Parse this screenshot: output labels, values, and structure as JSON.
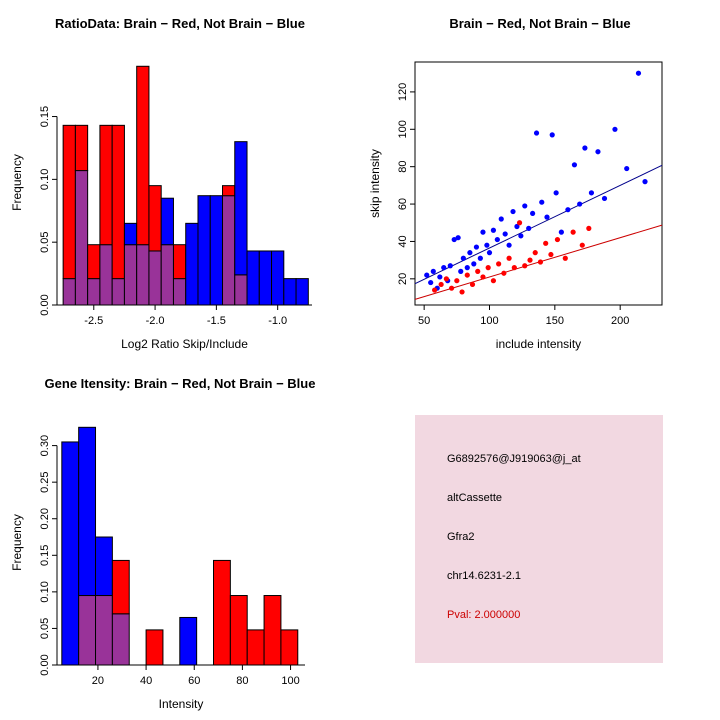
{
  "chart_data": [
    {
      "id": "ratio_hist",
      "type": "bar",
      "title": "RatioData: Brain − Red, Not Brain − Blue",
      "xlabel": "Log2 Ratio Skip/Include",
      "ylabel": "Frequency",
      "bin_start": -2.75,
      "bin_width": 0.1,
      "xlim": [
        -2.8,
        -0.72
      ],
      "ylim": [
        0,
        0.195
      ],
      "xticks": [
        -2.5,
        -2.0,
        -1.5,
        -1.0
      ],
      "yticks": [
        0,
        0.05,
        0.1,
        0.15
      ],
      "xtick_decimals": 1,
      "ytick_decimals": 2,
      "grid": false,
      "overlap_color": "#993399",
      "series": [
        {
          "name": "Brain",
          "color": "#FF0000",
          "values": [
            0.143,
            0.143,
            0.048,
            0.143,
            0.143,
            0.048,
            0.19,
            0.095,
            0.048,
            0.048,
            0,
            0,
            0,
            0.095,
            0.024,
            0,
            0,
            0,
            0,
            0
          ]
        },
        {
          "name": "Not Brain",
          "color": "#0000FF",
          "values": [
            0.021,
            0.107,
            0.021,
            0.048,
            0.021,
            0.065,
            0.048,
            0.043,
            0.085,
            0.021,
            0.065,
            0.087,
            0.087,
            0.087,
            0.13,
            0.043,
            0.043,
            0.043,
            0.021,
            0.021
          ]
        }
      ]
    },
    {
      "id": "intensity_scatter",
      "type": "scatter",
      "title": "Brain − Red, Not Brain − Blue",
      "xlabel": "include intensity",
      "ylabel": "skip intensity",
      "xlim": [
        43,
        232
      ],
      "ylim": [
        6,
        136
      ],
      "xticks": [
        50,
        100,
        150,
        200
      ],
      "yticks": [
        20,
        40,
        60,
        80,
        100,
        120
      ],
      "xtick_decimals": 0,
      "ytick_decimals": 0,
      "grid": false,
      "series": [
        {
          "name": "Not Brain",
          "color": "#0000FF",
          "points": [
            [
              52,
              22
            ],
            [
              55,
              18
            ],
            [
              57,
              24
            ],
            [
              60,
              15
            ],
            [
              62,
              21
            ],
            [
              65,
              26
            ],
            [
              68,
              19
            ],
            [
              70,
              27
            ],
            [
              73,
              41
            ],
            [
              76,
              42
            ],
            [
              78,
              24
            ],
            [
              80,
              31
            ],
            [
              83,
              26
            ],
            [
              85,
              34
            ],
            [
              88,
              28
            ],
            [
              90,
              37
            ],
            [
              93,
              31
            ],
            [
              95,
              45
            ],
            [
              98,
              38
            ],
            [
              100,
              34
            ],
            [
              103,
              46
            ],
            [
              106,
              41
            ],
            [
              109,
              52
            ],
            [
              112,
              44
            ],
            [
              115,
              38
            ],
            [
              118,
              56
            ],
            [
              121,
              48
            ],
            [
              124,
              43
            ],
            [
              127,
              59
            ],
            [
              130,
              47
            ],
            [
              133,
              55
            ],
            [
              136,
              98
            ],
            [
              140,
              61
            ],
            [
              144,
              53
            ],
            [
              148,
              97
            ],
            [
              151,
              66
            ],
            [
              155,
              45
            ],
            [
              160,
              57
            ],
            [
              165,
              81
            ],
            [
              169,
              60
            ],
            [
              173,
              90
            ],
            [
              178,
              66
            ],
            [
              183,
              88
            ],
            [
              188,
              63
            ],
            [
              196,
              100
            ],
            [
              205,
              79
            ],
            [
              214,
              130
            ],
            [
              219,
              72
            ]
          ]
        },
        {
          "name": "Brain",
          "color": "#FF0000",
          "points": [
            [
              58,
              14
            ],
            [
              63,
              17
            ],
            [
              67,
              20
            ],
            [
              71,
              15
            ],
            [
              75,
              19
            ],
            [
              79,
              13
            ],
            [
              83,
              22
            ],
            [
              87,
              17
            ],
            [
              91,
              24
            ],
            [
              95,
              21
            ],
            [
              99,
              26
            ],
            [
              103,
              19
            ],
            [
              107,
              28
            ],
            [
              111,
              23
            ],
            [
              115,
              31
            ],
            [
              119,
              26
            ],
            [
              123,
              50
            ],
            [
              127,
              27
            ],
            [
              131,
              30
            ],
            [
              135,
              34
            ],
            [
              139,
              29
            ],
            [
              143,
              39
            ],
            [
              147,
              33
            ],
            [
              152,
              41
            ],
            [
              158,
              31
            ],
            [
              164,
              45
            ],
            [
              171,
              38
            ],
            [
              176,
              47
            ]
          ]
        }
      ],
      "fit_lines": [
        {
          "name": "Not Brain fit",
          "color": "#00008B",
          "intercept": 3.0,
          "slope": 0.335
        },
        {
          "name": "Brain fit",
          "color": "#CC0000",
          "intercept": 0.0,
          "slope": 0.21
        }
      ]
    },
    {
      "id": "gene_hist",
      "type": "bar",
      "title": "Gene Itensity: Brain − Red, Not Brain − Blue",
      "xlabel": "Intensity",
      "ylabel": "Frequency",
      "bin_start": 5,
      "bin_width": 7,
      "xlim": [
        3,
        106
      ],
      "ylim": [
        0,
        0.335
      ],
      "xticks": [
        20,
        40,
        60,
        80,
        100
      ],
      "yticks": [
        0,
        0.05,
        0.1,
        0.15,
        0.2,
        0.25,
        0.3
      ],
      "xtick_decimals": 0,
      "ytick_decimals": 2,
      "grid": false,
      "overlap_color": "#993399",
      "series": [
        {
          "name": "Brain",
          "color": "#FF0000",
          "values": [
            0,
            0.095,
            0.095,
            0.143,
            0,
            0.048,
            0,
            0,
            0,
            0.143,
            0.095,
            0.048,
            0.095,
            0.048
          ]
        },
        {
          "name": "Not Brain",
          "color": "#0000FF",
          "values": [
            0.305,
            0.325,
            0.175,
            0.07,
            0,
            0,
            0,
            0.065,
            0,
            0,
            0,
            0,
            0,
            0
          ]
        }
      ]
    }
  ],
  "info_box": {
    "background": "#F2D8E1",
    "lines": [
      {
        "text": "G6892576@J919063@j_at",
        "color": "#000000"
      },
      {
        "text": "altCassette",
        "color": "#000000"
      },
      {
        "text": "Gfra2",
        "color": "#000000"
      },
      {
        "text": "chr14.6231-2.1",
        "color": "#000000"
      },
      {
        "text": "Pval: 2.000000",
        "color": "#CC0000"
      }
    ]
  }
}
